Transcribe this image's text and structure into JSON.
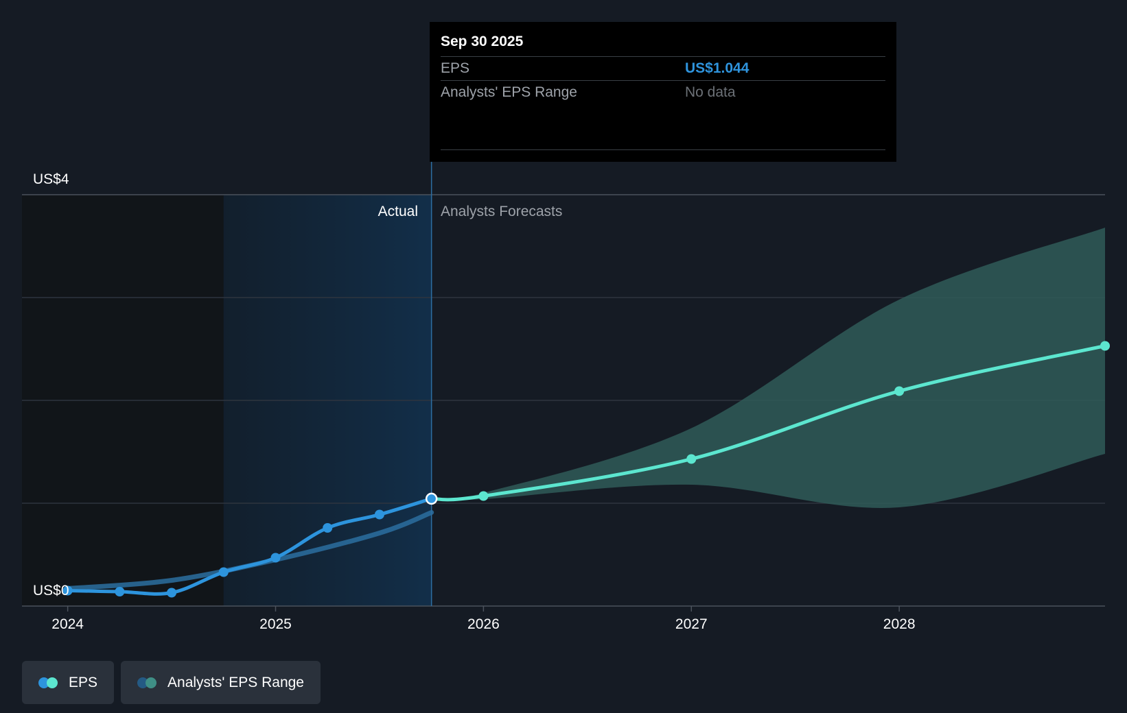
{
  "chart_data": {
    "type": "line",
    "y_axis": {
      "min": 0,
      "max": 4,
      "top_label": "US$4",
      "bottom_label": "US$0"
    },
    "x_ticks": [
      {
        "label": "2024",
        "t": 2024.0
      },
      {
        "label": "2025",
        "t": 2025.0
      },
      {
        "label": "2026",
        "t": 2026.0
      },
      {
        "label": "2027",
        "t": 2027.0
      },
      {
        "label": "2028",
        "t": 2028.0
      }
    ],
    "x_range": [
      2023.78,
      2028.99
    ],
    "past_highlight_start": 2024.75,
    "divider_t": 2025.75,
    "region_labels": {
      "actual": "Actual",
      "forecast": "Analysts Forecasts"
    },
    "series": [
      {
        "name": "EPS",
        "color": "#2d94dd",
        "points": [
          {
            "t": 2024.0,
            "v": 0.15
          },
          {
            "t": 2024.25,
            "v": 0.14
          },
          {
            "t": 2024.5,
            "v": 0.13
          },
          {
            "t": 2024.75,
            "v": 0.33
          },
          {
            "t": 2025.0,
            "v": 0.47
          },
          {
            "t": 2025.25,
            "v": 0.76
          },
          {
            "t": 2025.5,
            "v": 0.89
          },
          {
            "t": 2025.75,
            "v": 1.044
          }
        ]
      },
      {
        "name": "EPS",
        "color": "#5ce6cf",
        "points": [
          {
            "t": 2025.75,
            "v": 1.044
          },
          {
            "t": 2026.0,
            "v": 1.07
          },
          {
            "t": 2027.0,
            "v": 1.43
          },
          {
            "t": 2028.0,
            "v": 2.09
          },
          {
            "t": 2028.99,
            "v": 2.53
          }
        ]
      }
    ],
    "trend_line": {
      "color": "#2b6ea0",
      "points": [
        {
          "t": 2024.0,
          "v": 0.17
        },
        {
          "t": 2024.5,
          "v": 0.25
        },
        {
          "t": 2025.0,
          "v": 0.45
        },
        {
          "t": 2025.5,
          "v": 0.71
        },
        {
          "t": 2025.75,
          "v": 0.91
        }
      ]
    },
    "range_band": {
      "name": "Analysts' EPS Range",
      "color": "#2f5a58",
      "upper": [
        {
          "t": 2025.75,
          "v": 1.044
        },
        {
          "t": 2026.0,
          "v": 1.1
        },
        {
          "t": 2027.0,
          "v": 1.73
        },
        {
          "t": 2028.0,
          "v": 2.98
        },
        {
          "t": 2028.99,
          "v": 3.68
        }
      ],
      "lower": [
        {
          "t": 2025.75,
          "v": 1.044
        },
        {
          "t": 2026.0,
          "v": 1.04
        },
        {
          "t": 2027.0,
          "v": 1.18
        },
        {
          "t": 2028.0,
          "v": 0.96
        },
        {
          "t": 2028.99,
          "v": 1.48
        }
      ]
    }
  },
  "tooltip": {
    "date": "Sep 30 2025",
    "rows": [
      {
        "label": "EPS",
        "value": "US$1.044"
      },
      {
        "label": "Analysts' EPS Range",
        "value": "No data"
      }
    ]
  },
  "legend": [
    {
      "label": "EPS",
      "colors": [
        "#2d94dd",
        "#5ce6cf"
      ]
    },
    {
      "label": "Analysts' EPS Range",
      "colors": [
        "#245a84",
        "#3f8f86"
      ]
    }
  ]
}
